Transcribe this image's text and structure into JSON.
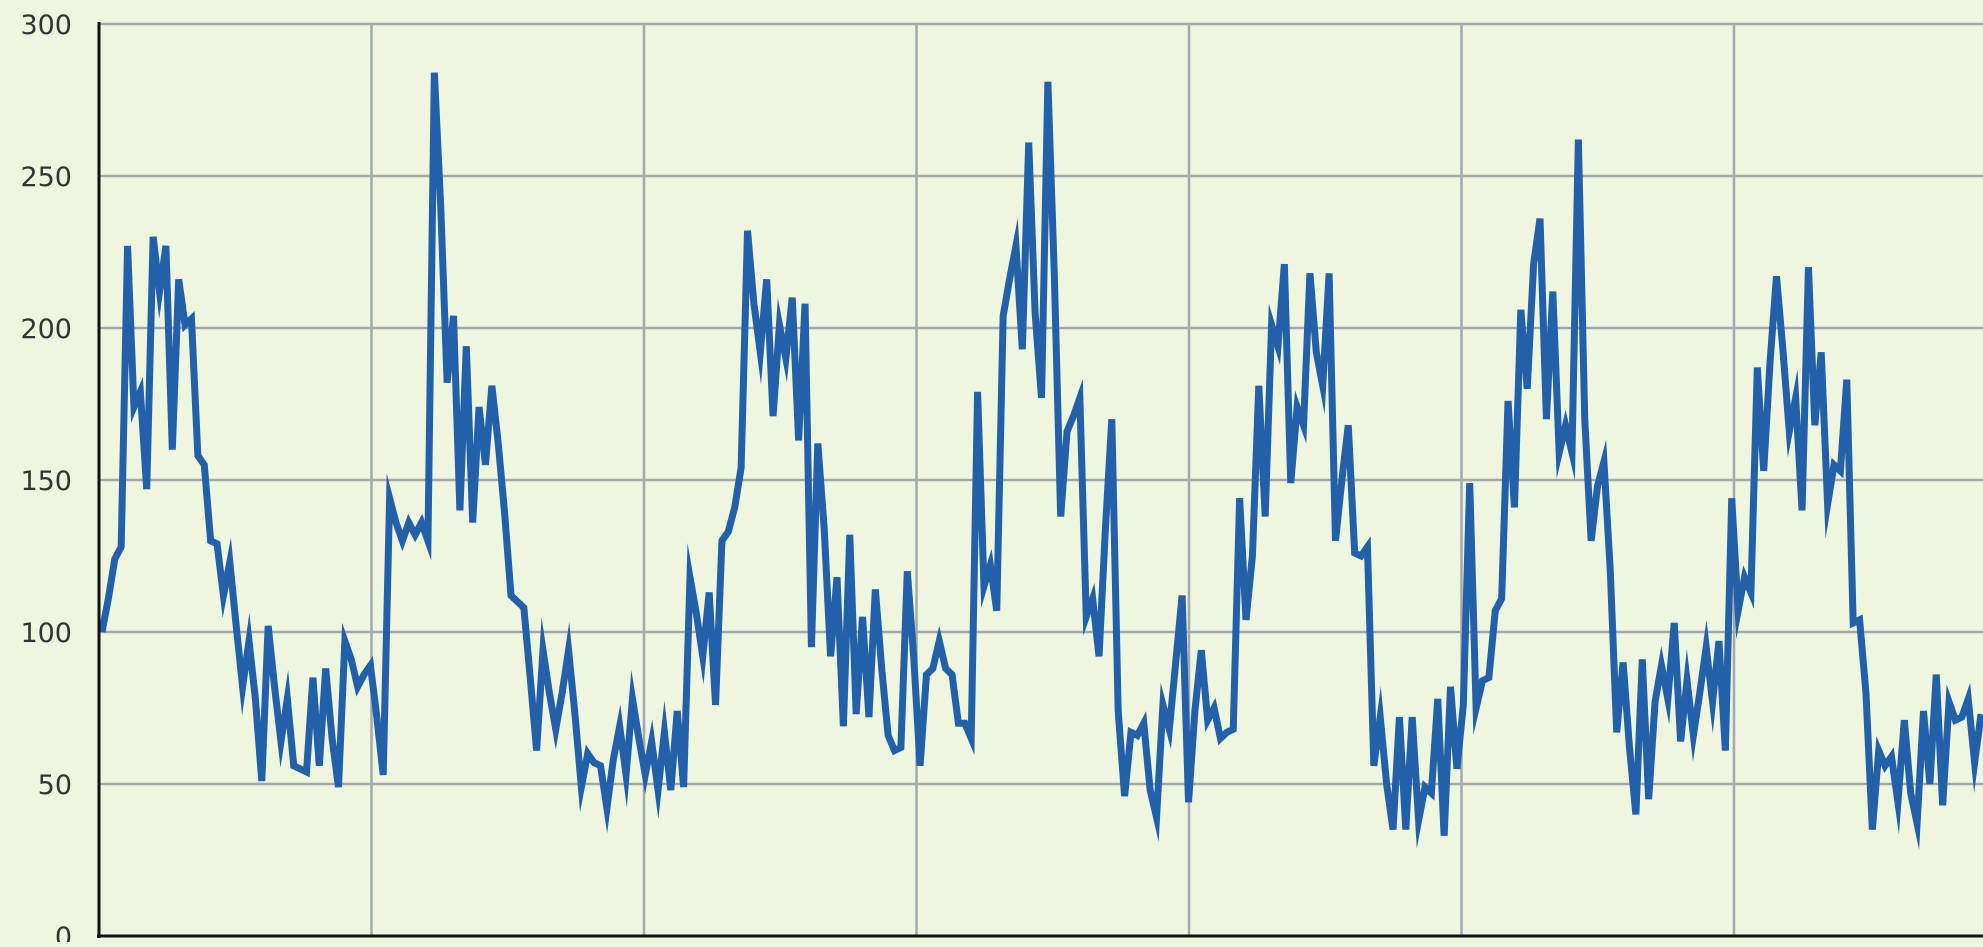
{
  "chart_data": {
    "type": "line",
    "title": "",
    "xlabel": "",
    "ylabel": "",
    "ylim": [
      0,
      300
    ],
    "y_ticks": [
      "0",
      "50",
      "100",
      "150",
      "200",
      "250",
      "300"
    ],
    "x_tick_labels": [],
    "grid": true,
    "legend": "none",
    "colors": {
      "background": "#eef6df",
      "grid": "#a4a8ad",
      "axis": "#111111",
      "line": "#2260aa"
    },
    "series": [
      {
        "values": [
          100,
          111,
          124,
          128,
          227,
          174,
          179,
          147,
          230,
          212,
          227,
          160,
          216,
          201,
          203,
          158,
          155,
          130,
          129,
          112,
          123,
          102,
          82,
          97,
          78,
          51,
          102,
          82,
          64,
          78,
          56,
          55,
          54,
          85,
          56,
          88,
          65,
          49,
          97,
          91,
          82,
          86,
          89,
          72,
          53,
          144,
          136,
          130,
          136,
          132,
          136,
          130,
          284,
          240,
          182,
          204,
          140,
          194,
          136,
          174,
          155,
          181,
          162,
          139,
          112,
          110,
          108,
          85,
          61,
          94,
          80,
          68,
          80,
          94,
          73,
          49,
          60,
          57,
          56,
          42,
          58,
          69,
          53,
          78,
          65,
          53,
          64,
          48,
          67,
          48,
          74,
          49,
          118,
          106,
          92,
          113,
          76,
          130,
          133,
          141,
          154,
          232,
          208,
          192,
          216,
          171,
          201,
          190,
          210,
          163,
          208,
          95,
          162,
          134,
          92,
          118,
          69,
          132,
          73,
          105,
          72,
          114,
          88,
          66,
          61,
          62,
          120,
          92,
          56,
          86,
          88,
          97,
          88,
          86,
          70,
          70,
          65,
          179,
          115,
          122,
          107,
          204,
          216,
          227,
          193,
          261,
          205,
          177,
          281,
          218,
          138,
          166,
          171,
          177,
          105,
          111,
          92,
          134,
          170,
          74,
          46,
          67,
          66,
          70,
          48,
          39,
          76,
          68,
          90,
          112,
          44,
          74,
          94,
          71,
          75,
          65,
          67,
          68,
          144,
          104,
          125,
          181,
          138,
          201,
          194,
          221,
          149,
          174,
          168,
          218,
          192,
          181,
          218,
          130,
          150,
          168,
          126,
          125,
          128,
          56,
          72,
          50,
          35,
          72,
          35,
          72,
          38,
          49,
          47,
          78,
          33,
          82,
          55,
          76,
          149,
          75,
          84,
          85,
          107,
          111,
          176,
          141,
          206,
          180,
          221,
          236,
          170,
          212,
          159,
          168,
          159,
          262,
          170,
          130,
          148,
          156,
          120,
          67,
          90,
          62,
          40,
          91,
          45,
          77,
          89,
          78,
          103,
          64,
          84,
          66,
          80,
          95,
          77,
          97,
          61,
          144,
          107,
          118,
          113,
          187,
          153,
          189,
          217,
          193,
          166,
          177,
          140,
          220,
          168,
          192,
          142,
          155,
          153,
          183,
          103,
          104,
          80,
          35,
          61,
          56,
          59,
          44,
          71,
          47,
          37,
          74,
          50,
          86,
          43,
          77,
          71,
          72,
          78,
          57,
          73
        ]
      }
    ]
  }
}
